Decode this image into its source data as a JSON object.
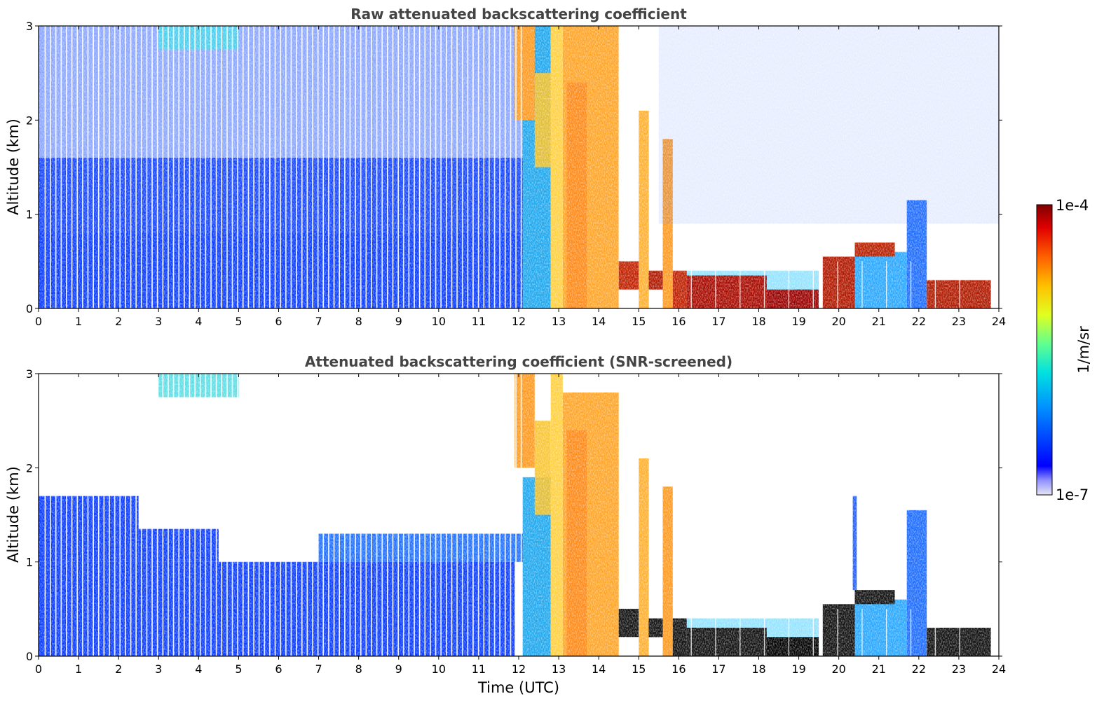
{
  "chart_data": {
    "type": "heatmap",
    "colorbar": {
      "label": "1/m/sr",
      "min_label": "1e-7",
      "max_label": "1e-4",
      "min": 1e-07,
      "max": 0.0001,
      "scale": "log",
      "colormap": "jet",
      "colors": [
        "#e6e6f5",
        "#0000ff",
        "#0090ff",
        "#00e0e0",
        "#60ff90",
        "#e0ff20",
        "#ffc000",
        "#ff6000",
        "#e00000",
        "#800000"
      ]
    },
    "xlabel": "Time (UTC)",
    "xticks": [
      "0",
      "1",
      "2",
      "3",
      "4",
      "5",
      "6",
      "7",
      "8",
      "9",
      "10",
      "11",
      "12",
      "13",
      "14",
      "15",
      "16",
      "17",
      "18",
      "19",
      "20",
      "21",
      "22",
      "23",
      "24"
    ],
    "xlim": [
      0,
      24
    ],
    "panels": [
      {
        "title": "Raw attenuated backscattering coefficient",
        "ylabel": "Altitude (km)",
        "yticks": [
          "0",
          "1",
          "2",
          "3"
        ],
        "ylim": [
          0,
          3
        ]
      },
      {
        "title": "Attenuated backscattering coefficient (SNR-screened)",
        "ylabel": "Altitude (km)",
        "yticks": [
          "0",
          "1",
          "2",
          "3"
        ],
        "ylim": [
          0,
          3
        ]
      }
    ]
  }
}
